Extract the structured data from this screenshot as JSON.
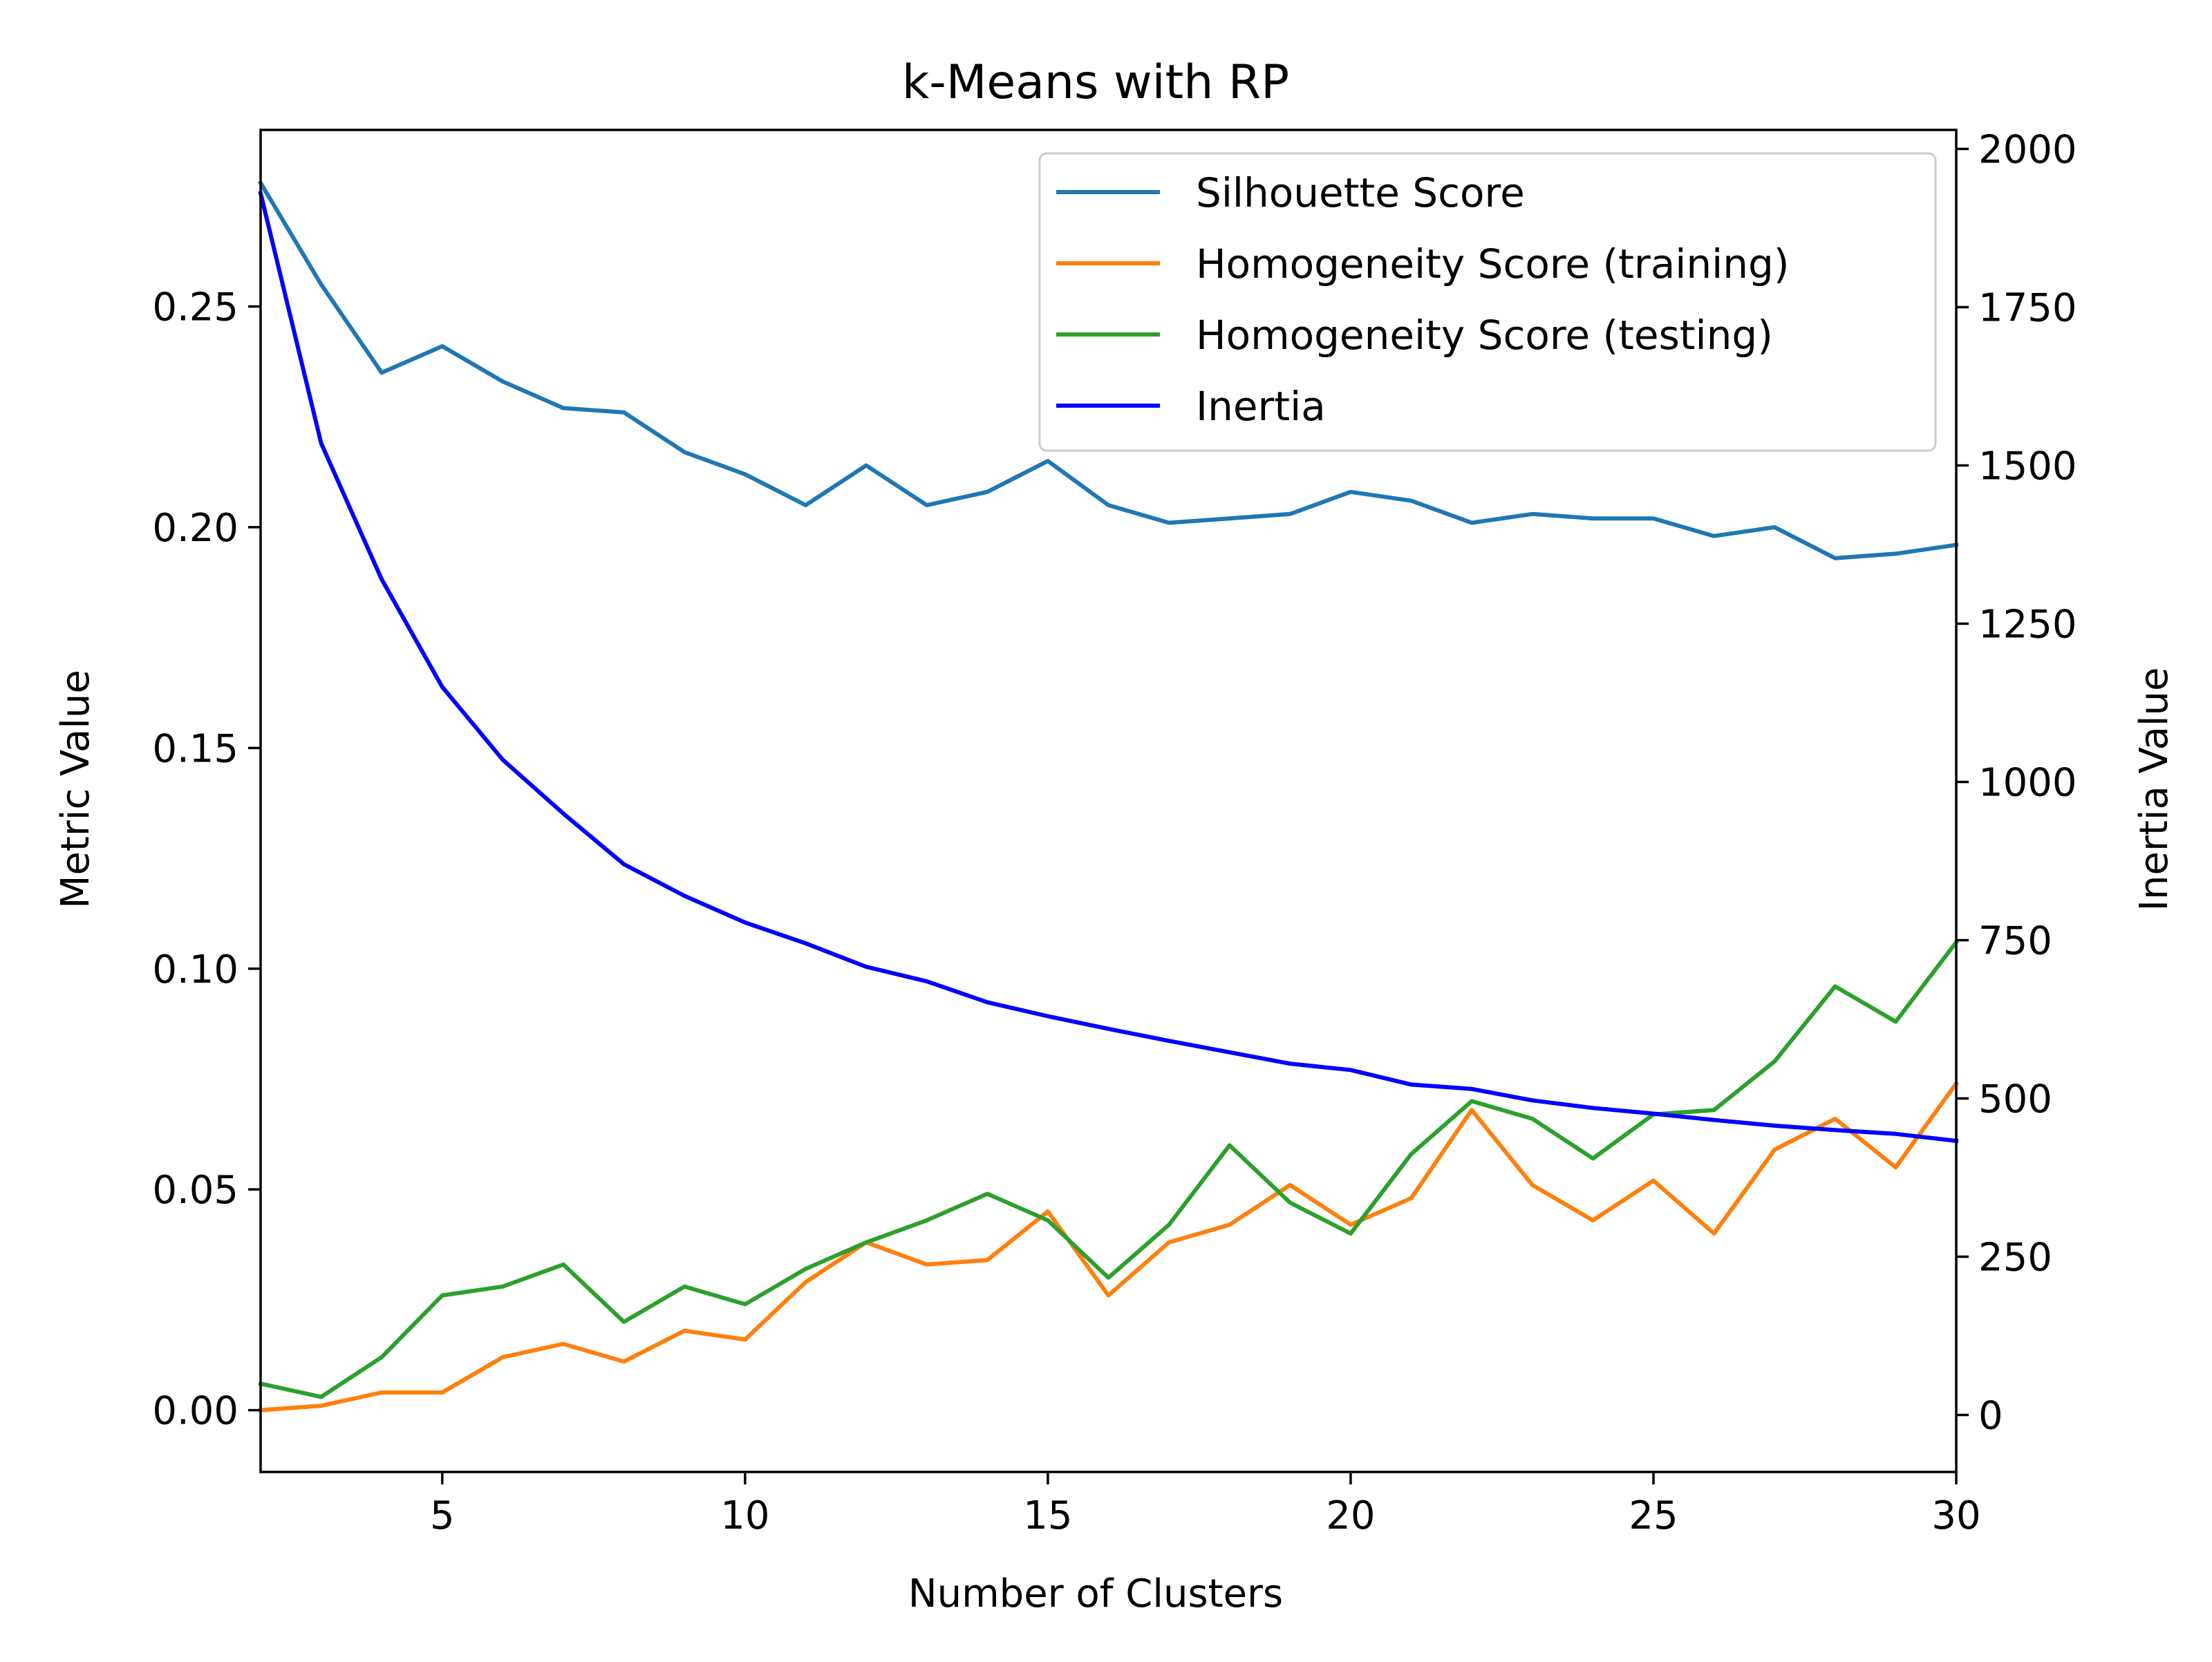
{
  "chart_data": {
    "type": "line",
    "title": "k-Means with RP",
    "xlabel": "Number of Clusters",
    "ylabel": "Metric Value",
    "y2label": "Inertia Value",
    "xlim": [
      2,
      30
    ],
    "ylim": [
      -0.014,
      0.29
    ],
    "y2lim": [
      -90,
      2030
    ],
    "xticks": [
      "5",
      "10",
      "15",
      "20",
      "25",
      "30"
    ],
    "yticks": [
      "0.00",
      "0.05",
      "0.10",
      "0.15",
      "0.20",
      "0.25"
    ],
    "y2ticks": [
      "0",
      "250",
      "500",
      "750",
      "1000",
      "1250",
      "1500",
      "1750",
      "2000"
    ],
    "grid": false,
    "legend_position": "top-right",
    "x": [
      2,
      3,
      4,
      5,
      6,
      7,
      8,
      9,
      10,
      11,
      12,
      13,
      14,
      15,
      16,
      17,
      18,
      19,
      20,
      21,
      22,
      23,
      24,
      25,
      26,
      27,
      28,
      29,
      30
    ],
    "series": [
      {
        "name": "Silhouette Score",
        "axis": "left",
        "color": "#1f77b4",
        "values": [
          0.278,
          0.255,
          0.235,
          0.241,
          0.233,
          0.227,
          0.226,
          0.217,
          0.212,
          0.205,
          0.214,
          0.205,
          0.208,
          0.215,
          0.205,
          0.201,
          0.202,
          0.203,
          0.208,
          0.206,
          0.201,
          0.203,
          0.202,
          0.202,
          0.198,
          0.2,
          0.193,
          0.194,
          0.196
        ]
      },
      {
        "name": "Homogeneity Score (training)",
        "axis": "left",
        "color": "#ff7f0e",
        "values": [
          0.0,
          0.001,
          0.004,
          0.004,
          0.012,
          0.015,
          0.011,
          0.018,
          0.016,
          0.029,
          0.038,
          0.033,
          0.034,
          0.045,
          0.026,
          0.038,
          0.042,
          0.051,
          0.042,
          0.048,
          0.068,
          0.051,
          0.043,
          0.052,
          0.04,
          0.059,
          0.066,
          0.055,
          0.074
        ]
      },
      {
        "name": "Homogeneity Score (testing)",
        "axis": "left",
        "color": "#2ca02c",
        "values": [
          0.006,
          0.003,
          0.012,
          0.026,
          0.028,
          0.033,
          0.02,
          0.028,
          0.024,
          0.032,
          0.038,
          0.043,
          0.049,
          0.043,
          0.03,
          0.042,
          0.06,
          0.047,
          0.04,
          0.058,
          0.07,
          0.066,
          0.057,
          0.067,
          0.068,
          0.079,
          0.096,
          0.088,
          0.106
        ]
      },
      {
        "name": "Inertia",
        "axis": "right",
        "color": "#0000ff",
        "values": [
          1930,
          1535,
          1320,
          1150,
          1035,
          950,
          870,
          820,
          778,
          745,
          708,
          685,
          652,
          630,
          610,
          591,
          573,
          555,
          545,
          522,
          515,
          497,
          485,
          476,
          466,
          457,
          450,
          444,
          433
        ]
      }
    ]
  }
}
